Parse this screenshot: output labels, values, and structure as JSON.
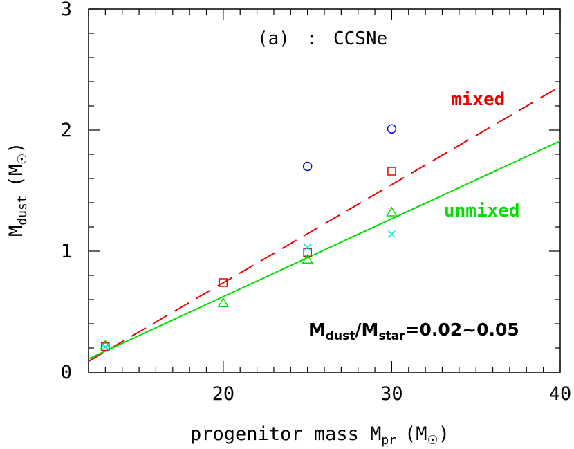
{
  "chart_data": {
    "type": "scatter",
    "title": "(a) : CCSNe",
    "xlabel": "progenitor mass M_pr (M_sun)",
    "ylabel": "M_dust (M_sun)",
    "xlim": [
      12,
      40
    ],
    "ylim": [
      0,
      3
    ],
    "x_ticks": [
      "20",
      "30",
      "40"
    ],
    "y_ticks": [
      "0",
      "1",
      "2",
      "3"
    ],
    "grid": false,
    "annotation": "M_dust/M_star=0.02~0.05",
    "lines": [
      {
        "name": "mixed",
        "style": "dashed",
        "color": "#ee0000",
        "x": [
          12,
          40
        ],
        "y": [
          0.09,
          2.36
        ]
      },
      {
        "name": "unmixed",
        "style": "solid",
        "color": "#00dd00",
        "x": [
          12,
          40
        ],
        "y": [
          0.11,
          1.91
        ]
      }
    ],
    "markers": [
      {
        "marker": "circle",
        "color": "#0000dd",
        "x": [
          25,
          30
        ],
        "y": [
          1.7,
          2.01
        ]
      },
      {
        "marker": "square",
        "color": "#ee0000",
        "x": [
          13,
          20,
          25,
          30
        ],
        "y": [
          0.21,
          0.74,
          0.99,
          1.66
        ]
      },
      {
        "marker": "triangle",
        "color": "#00dd00",
        "x": [
          13,
          20,
          25,
          30
        ],
        "y": [
          0.22,
          0.57,
          0.93,
          1.32
        ]
      },
      {
        "marker": "cross",
        "color": "#00dddd",
        "x": [
          13,
          25,
          30
        ],
        "y": [
          0.21,
          1.03,
          1.14
        ]
      }
    ]
  },
  "text": {
    "title_a": "(a)",
    "title_sep": ":",
    "title_b": "CCSNe",
    "xlabel_main": "progenitor mass M",
    "xlabel_sub": "pr",
    "xlabel_unit_open": "(M",
    "xlabel_unit_close": ")",
    "ylabel_main": "M",
    "ylabel_sub": "dust",
    "ylabel_unit_open": "(M",
    "ylabel_unit_close": ")",
    "anno_m1": "M",
    "anno_sub1": "dust",
    "anno_slash": "/M",
    "anno_sub2": "star",
    "anno_value": "=0.02~0.05",
    "label_mixed": "mixed",
    "label_unmixed": "unmixed"
  }
}
